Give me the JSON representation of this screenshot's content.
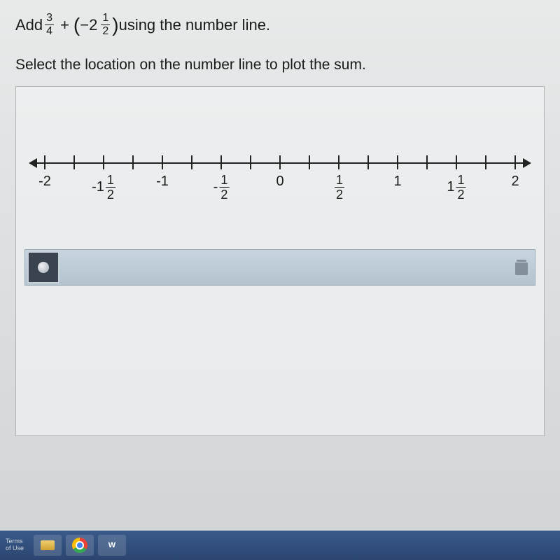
{
  "prompt": {
    "prefix": "Add ",
    "frac1": {
      "num": "3",
      "den": "4"
    },
    "plus": "+",
    "lparen": "(",
    "mixed_neg": "−2",
    "frac2": {
      "num": "1",
      "den": "2"
    },
    "rparen": ")",
    "suffix": " using the number line."
  },
  "instruction": "Select the location on the number line to plot the sum.",
  "numberline": {
    "min": -2.125,
    "max": 2.125,
    "axis_color": "#222222",
    "ticks": [
      {
        "value": -2.0,
        "major": true,
        "label_type": "int",
        "text": "-2"
      },
      {
        "value": -1.75,
        "major": false,
        "label_type": "none"
      },
      {
        "value": -1.5,
        "major": true,
        "label_type": "mixed",
        "neg": "-1",
        "num": "1",
        "den": "2"
      },
      {
        "value": -1.25,
        "major": false,
        "label_type": "none"
      },
      {
        "value": -1.0,
        "major": true,
        "label_type": "int",
        "text": "-1"
      },
      {
        "value": -0.75,
        "major": false,
        "label_type": "none"
      },
      {
        "value": -0.5,
        "major": true,
        "label_type": "frac",
        "neg": "-",
        "num": "1",
        "den": "2"
      },
      {
        "value": -0.25,
        "major": false,
        "label_type": "none"
      },
      {
        "value": 0.0,
        "major": true,
        "label_type": "int",
        "text": "0"
      },
      {
        "value": 0.25,
        "major": false,
        "label_type": "none"
      },
      {
        "value": 0.5,
        "major": true,
        "label_type": "frac",
        "neg": "",
        "num": "1",
        "den": "2"
      },
      {
        "value": 0.75,
        "major": false,
        "label_type": "none"
      },
      {
        "value": 1.0,
        "major": true,
        "label_type": "int",
        "text": "1"
      },
      {
        "value": 1.25,
        "major": false,
        "label_type": "none"
      },
      {
        "value": 1.5,
        "major": true,
        "label_type": "mixed",
        "neg": "1",
        "num": "1",
        "den": "2"
      },
      {
        "value": 1.75,
        "major": false,
        "label_type": "none"
      },
      {
        "value": 2.0,
        "major": true,
        "label_type": "int",
        "text": "2"
      }
    ]
  },
  "toolbar": {
    "point_tool": "●",
    "trash": "trash"
  },
  "taskbar": {
    "items": [
      {
        "name": "terms-link",
        "label": "Terms\nof\nUse"
      },
      {
        "name": "explorer-icon",
        "label": ""
      },
      {
        "name": "chrome-icon",
        "label": ""
      },
      {
        "name": "word-icon",
        "label": "W"
      }
    ]
  },
  "colors": {
    "page_bg": "#dde1e1",
    "panel_border": "#b0b4b4",
    "toolbar_bg_top": "#c8d5e0",
    "toolbar_bg_bottom": "#b4c3d0",
    "dot_btn_bg": "#3a4450",
    "taskbar_bg": "#2a4570",
    "text": "#1a1a1a"
  }
}
